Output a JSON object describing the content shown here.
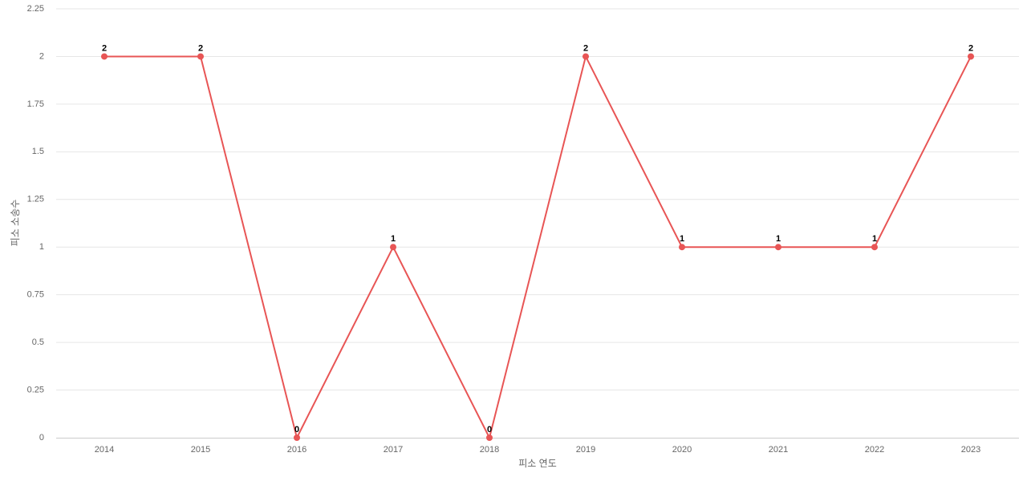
{
  "chart_data": {
    "type": "line",
    "x_label": "피소 연도",
    "y_label": "피소 소송수",
    "categories": [
      "2014",
      "2015",
      "2016",
      "2017",
      "2018",
      "2019",
      "2020",
      "2021",
      "2022",
      "2023"
    ],
    "series": [
      {
        "color": "#e85555",
        "values": [
          2,
          2,
          0,
          1,
          0,
          2,
          1,
          1,
          1,
          2
        ]
      }
    ],
    "ylim": [
      0,
      2.25
    ],
    "yticks": [
      0,
      0.25,
      0.5,
      0.75,
      1,
      1.25,
      1.5,
      1.75,
      2,
      2.25
    ],
    "grid": true
  }
}
